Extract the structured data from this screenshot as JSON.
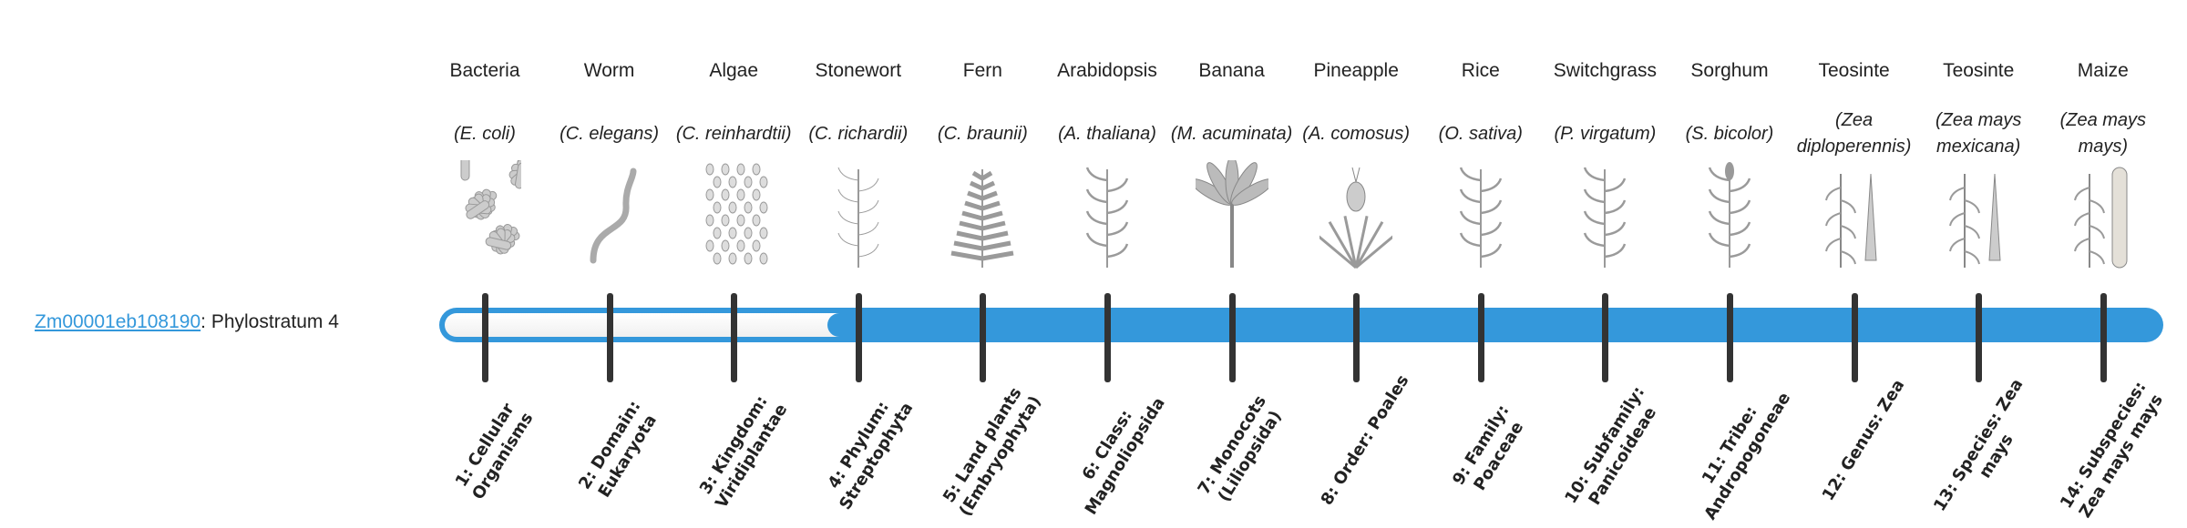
{
  "gene": {
    "id": "Zm00001eb108190",
    "suffix": ": Phylostratum 4"
  },
  "phylostratum": 4,
  "colors": {
    "bar": "#3498db",
    "tick": "#333333",
    "link": "#3498db"
  },
  "columns": [
    {
      "common": "Bacteria",
      "species": "(E. coli)",
      "icon": "bacteria-rods",
      "label": "1: Cellular Organisms"
    },
    {
      "common": "Worm",
      "species": "(C. elegans)",
      "icon": "worm",
      "label": "2: Domain: Eukaryota"
    },
    {
      "common": "Algae",
      "species": "(C. reinhardtii)",
      "icon": "algae-cells",
      "label": "3: Kingdom: Viridiplantae"
    },
    {
      "common": "Stonewort",
      "species": "(C. richardii)",
      "icon": "stonewort",
      "label": "4: Phylum: Streptophyta"
    },
    {
      "common": "Fern",
      "species": "(C. braunii)",
      "icon": "fern",
      "label": "5: Land plants (Embryophyta)"
    },
    {
      "common": "Arabidopsis",
      "species": "(A. thaliana)",
      "icon": "arabidopsis",
      "label": "6: Class: Magnoliopsida"
    },
    {
      "common": "Banana",
      "species": "(M. acuminata)",
      "icon": "banana-plant",
      "label": "7: Monocots (Liliopsida)"
    },
    {
      "common": "Pineapple",
      "species": "(A. comosus)",
      "icon": "pineapple",
      "label": "8: Order: Poales"
    },
    {
      "common": "Rice",
      "species": "(O. sativa)",
      "icon": "rice",
      "label": "9: Family: Poaceae"
    },
    {
      "common": "Switchgrass",
      "species": "(P. virgatum)",
      "icon": "switchgrass",
      "label": "10: Subfamily: Panicoideae"
    },
    {
      "common": "Sorghum",
      "species": "(S. bicolor)",
      "icon": "sorghum",
      "label": "11: Tribe: Andropogoneae"
    },
    {
      "common": "Teosinte",
      "species": "(Zea diploperennis)",
      "icon": "teosinte",
      "label": "12: Genus: Zea"
    },
    {
      "common": "Teosinte",
      "species": "(Zea mays mexicana)",
      "icon": "teosinte",
      "label": "13: Species: Zea mays"
    },
    {
      "common": "Maize",
      "species": "(Zea mays mays)",
      "icon": "maize",
      "label": "14: Subspecies: Zea mays mays"
    }
  ]
}
